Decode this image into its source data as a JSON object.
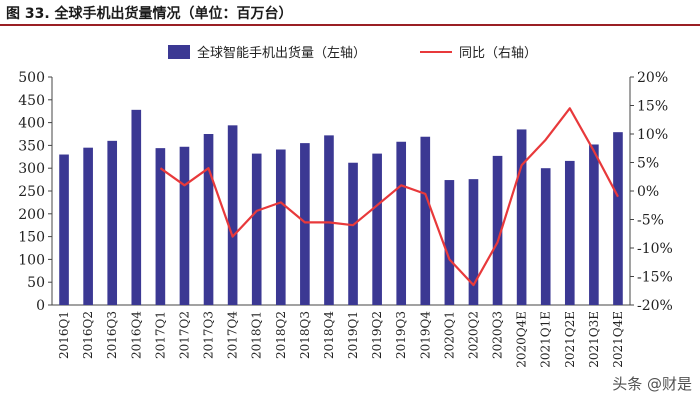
{
  "header": {
    "figure_title": "图 33. 全球手机出货量情况（单位：百万台）"
  },
  "watermark": "头条 @财是",
  "chart_data": {
    "type": "bar",
    "categories": [
      "2016Q1",
      "2016Q2",
      "2016Q3",
      "2016Q4",
      "2017Q1",
      "2017Q2",
      "2017Q3",
      "2017Q4",
      "2018Q1",
      "2018Q2",
      "2018Q3",
      "2018Q4",
      "2019Q1",
      "2019Q2",
      "2019Q3",
      "2019Q4",
      "2020Q1",
      "2020Q2",
      "2020Q3",
      "2020Q4E",
      "2021Q1E",
      "2021Q2E",
      "2021Q3E",
      "2021Q4E"
    ],
    "series": [
      {
        "name": "全球智能手机出货量（左轴）",
        "type": "bar",
        "axis": "left",
        "color": "#3b3893",
        "values": [
          330,
          345,
          360,
          428,
          344,
          347,
          375,
          394,
          332,
          341,
          355,
          372,
          312,
          332,
          358,
          369,
          274,
          276,
          327,
          385,
          300,
          316,
          352,
          379
        ]
      },
      {
        "name": "同比（右轴）",
        "type": "line",
        "axis": "right",
        "color": "#e8393b",
        "unit": "%",
        "values": [
          null,
          null,
          null,
          null,
          4,
          1,
          4,
          -8,
          -3.5,
          -2,
          -5.5,
          -5.5,
          -6,
          -2.5,
          1,
          -0.5,
          -12,
          -16.5,
          -9,
          4.5,
          9,
          14.5,
          7,
          -1
        ]
      }
    ],
    "ylim_left": [
      0,
      500
    ],
    "yticks_left": [
      "0",
      "50",
      "100",
      "150",
      "200",
      "250",
      "300",
      "350",
      "400",
      "450",
      "500"
    ],
    "ylim_right": [
      -20,
      20
    ],
    "yticks_right": [
      "-20%",
      "-15%",
      "-10%",
      "-5%",
      "0%",
      "5%",
      "10%",
      "15%",
      "20%"
    ],
    "grid": false,
    "legend_position": "top"
  }
}
